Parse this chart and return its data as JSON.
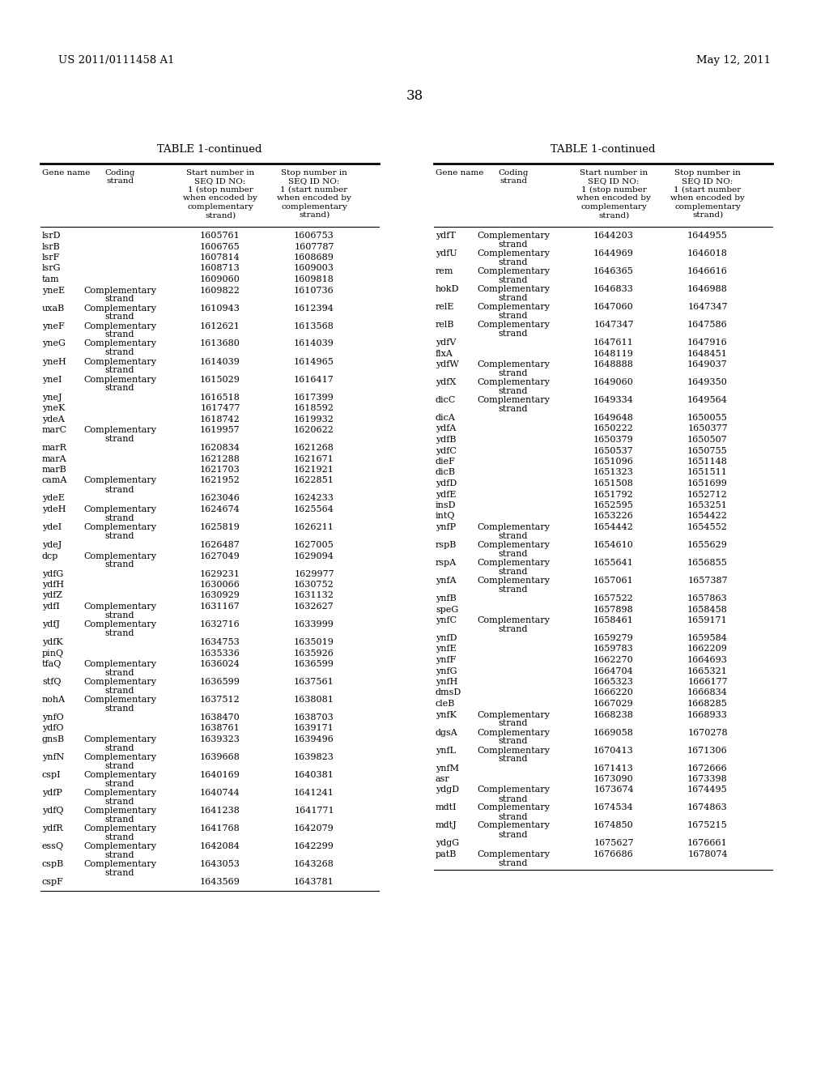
{
  "header_left": "US 2011/0111458 A1",
  "header_right": "May 12, 2011",
  "page_number": "38",
  "table_title": "TABLE 1-continued",
  "left_table": [
    [
      "lsrD",
      "",
      "1605761",
      "1606753"
    ],
    [
      "lsrB",
      "",
      "1606765",
      "1607787"
    ],
    [
      "lsrF",
      "",
      "1607814",
      "1608689"
    ],
    [
      "lsrG",
      "",
      "1608713",
      "1609003"
    ],
    [
      "tam",
      "",
      "1609060",
      "1609818"
    ],
    [
      "yneE",
      "Complementary\nstrand",
      "1609822",
      "1610736"
    ],
    [
      "uxaB",
      "Complementary\nstrand",
      "1610943",
      "1612394"
    ],
    [
      "yneF",
      "Complementary\nstrand",
      "1612621",
      "1613568"
    ],
    [
      "yneG",
      "Complementary\nstrand",
      "1613680",
      "1614039"
    ],
    [
      "yneH",
      "Complementary\nstrand",
      "1614039",
      "1614965"
    ],
    [
      "yneI",
      "Complementary\nstrand",
      "1615029",
      "1616417"
    ],
    [
      "yneJ",
      "",
      "1616518",
      "1617399"
    ],
    [
      "yneK",
      "",
      "1617477",
      "1618592"
    ],
    [
      "ydeA",
      "",
      "1618742",
      "1619932"
    ],
    [
      "marC",
      "Complementary\nstrand",
      "1619957",
      "1620622"
    ],
    [
      "marR",
      "",
      "1620834",
      "1621268"
    ],
    [
      "marA",
      "",
      "1621288",
      "1621671"
    ],
    [
      "marB",
      "",
      "1621703",
      "1621921"
    ],
    [
      "camA",
      "Complementary\nstrand",
      "1621952",
      "1622851"
    ],
    [
      "ydeE",
      "",
      "1623046",
      "1624233"
    ],
    [
      "ydeH",
      "Complementary\nstrand",
      "1624674",
      "1625564"
    ],
    [
      "ydeI",
      "Complementary\nstrand",
      "1625819",
      "1626211"
    ],
    [
      "ydeJ",
      "",
      "1626487",
      "1627005"
    ],
    [
      "dcp",
      "Complementary\nstrand",
      "1627049",
      "1629094"
    ],
    [
      "ydfG",
      "",
      "1629231",
      "1629977"
    ],
    [
      "ydfH",
      "",
      "1630066",
      "1630752"
    ],
    [
      "ydfZ",
      "",
      "1630929",
      "1631132"
    ],
    [
      "ydfI",
      "Complementary\nstrand",
      "1631167",
      "1632627"
    ],
    [
      "ydfJ",
      "Complementary\nstrand",
      "1632716",
      "1633999"
    ],
    [
      "ydfK",
      "",
      "1634753",
      "1635019"
    ],
    [
      "pinQ",
      "",
      "1635336",
      "1635926"
    ],
    [
      "tfaQ",
      "Complementary\nstrand",
      "1636024",
      "1636599"
    ],
    [
      "stfQ",
      "Complementary\nstrand",
      "1636599",
      "1637561"
    ],
    [
      "nohA",
      "Complementary\nstrand",
      "1637512",
      "1638081"
    ],
    [
      "ynfO",
      "",
      "1638470",
      "1638703"
    ],
    [
      "ydfO",
      "",
      "1638761",
      "1639171"
    ],
    [
      "gnsB",
      "Complementary\nstrand",
      "1639323",
      "1639496"
    ],
    [
      "ynfN",
      "Complementary\nstrand",
      "1639668",
      "1639823"
    ],
    [
      "cspI",
      "Complementary\nstrand",
      "1640169",
      "1640381"
    ],
    [
      "ydfP",
      "Complementary\nstrand",
      "1640744",
      "1641241"
    ],
    [
      "ydfQ",
      "Complementary\nstrand",
      "1641238",
      "1641771"
    ],
    [
      "ydfR",
      "Complementary\nstrand",
      "1641768",
      "1642079"
    ],
    [
      "essQ",
      "Complementary\nstrand",
      "1642084",
      "1642299"
    ],
    [
      "cspB",
      "Complementary\nstrand",
      "1643053",
      "1643268"
    ],
    [
      "cspF",
      "",
      "1643569",
      "1643781"
    ]
  ],
  "right_table": [
    [
      "ydfT",
      "Complementary\nstrand",
      "1644203",
      "1644955"
    ],
    [
      "ydfU",
      "Complementary\nstrand",
      "1644969",
      "1646018"
    ],
    [
      "rem",
      "Complementary\nstrand",
      "1646365",
      "1646616"
    ],
    [
      "hokD",
      "Complementary\nstrand",
      "1646833",
      "1646988"
    ],
    [
      "relE",
      "Complementary\nstrand",
      "1647060",
      "1647347"
    ],
    [
      "relB",
      "Complementary\nstrand",
      "1647347",
      "1647586"
    ],
    [
      "ydfV",
      "",
      "1647611",
      "1647916"
    ],
    [
      "flxA",
      "",
      "1648119",
      "1648451"
    ],
    [
      "ydfW",
      "Complementary\nstrand",
      "1648888",
      "1649037"
    ],
    [
      "ydfX",
      "Complementary\nstrand",
      "1649060",
      "1649350"
    ],
    [
      "dicC",
      "Complementary\nstrand",
      "1649334",
      "1649564"
    ],
    [
      "dicA",
      "",
      "1649648",
      "1650055"
    ],
    [
      "ydfA",
      "",
      "1650222",
      "1650377"
    ],
    [
      "ydfB",
      "",
      "1650379",
      "1650507"
    ],
    [
      "ydfC",
      "",
      "1650537",
      "1650755"
    ],
    [
      "dieF",
      "",
      "1651096",
      "1651148"
    ],
    [
      "dicB",
      "",
      "1651323",
      "1651511"
    ],
    [
      "ydfD",
      "",
      "1651508",
      "1651699"
    ],
    [
      "ydfE",
      "",
      "1651792",
      "1652712"
    ],
    [
      "insD",
      "",
      "1652595",
      "1653251"
    ],
    [
      "intQ",
      "",
      "1653226",
      "1654422"
    ],
    [
      "ynfP",
      "Complementary\nstrand",
      "1654442",
      "1654552"
    ],
    [
      "rspB",
      "Complementary\nstrand",
      "1654610",
      "1655629"
    ],
    [
      "rspA",
      "Complementary\nstrand",
      "1655641",
      "1656855"
    ],
    [
      "ynfA",
      "Complementary\nstrand",
      "1657061",
      "1657387"
    ],
    [
      "ynfB",
      "",
      "1657522",
      "1657863"
    ],
    [
      "speG",
      "",
      "1657898",
      "1658458"
    ],
    [
      "ynfC",
      "Complementary\nstrand",
      "1658461",
      "1659171"
    ],
    [
      "ynfD",
      "",
      "1659279",
      "1659584"
    ],
    [
      "ynfE",
      "",
      "1659783",
      "1662209"
    ],
    [
      "ynfF",
      "",
      "1662270",
      "1664693"
    ],
    [
      "ynfG",
      "",
      "1664704",
      "1665321"
    ],
    [
      "ynfH",
      "",
      "1665323",
      "1666177"
    ],
    [
      "dmsD",
      "",
      "1666220",
      "1666834"
    ],
    [
      "cleB",
      "",
      "1667029",
      "1668285"
    ],
    [
      "ynfK",
      "Complementary\nstrand",
      "1668238",
      "1668933"
    ],
    [
      "dgsA",
      "Complementary\nstrand",
      "1669058",
      "1670278"
    ],
    [
      "ynfL",
      "Complementary\nstrand",
      "1670413",
      "1671306"
    ],
    [
      "ynfM",
      "",
      "1671413",
      "1672666"
    ],
    [
      "asr",
      "",
      "1673090",
      "1673398"
    ],
    [
      "ydgD",
      "Complementary\nstrand",
      "1673674",
      "1674495"
    ],
    [
      "mdtI",
      "Complementary\nstrand",
      "1674534",
      "1674863"
    ],
    [
      "mdtJ",
      "Complementary\nstrand",
      "1674850",
      "1675215"
    ],
    [
      "ydgG",
      "",
      "1675627",
      "1676661"
    ],
    [
      "patB",
      "Complementary\nstrand",
      "1676686",
      "1678074"
    ]
  ],
  "bg_color": "#ffffff",
  "text_color": "#000000",
  "font_size_header": 9.5,
  "font_size_body": 8.0,
  "font_size_col_header": 7.5,
  "font_size_page": 12
}
